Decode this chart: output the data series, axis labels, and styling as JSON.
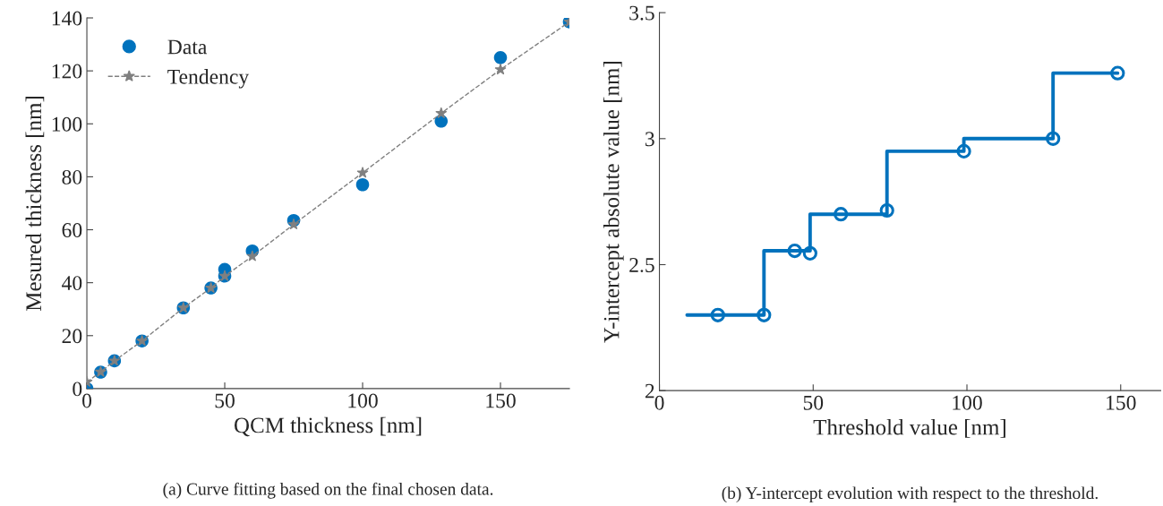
{
  "chart_data": [
    {
      "type": "scatter",
      "xlabel": "QCM thickness [nm]",
      "ylabel": "Mesured thickness [nm]",
      "xlim": [
        0,
        175
      ],
      "ylim": [
        0,
        140
      ],
      "xticks": [
        0,
        50,
        100,
        150
      ],
      "yticks": [
        0,
        20,
        40,
        60,
        80,
        100,
        120,
        140
      ],
      "grid": false,
      "legend": "top left",
      "annotations": [
        "(a) Curve fitting based on the final chosen data."
      ],
      "series": [
        {
          "name": "Data",
          "type": "scatter",
          "color": "#0072bd",
          "marker": "circle",
          "x": [
            0,
            5,
            10,
            20,
            35,
            45,
            50,
            50,
            60,
            75,
            100,
            128.5,
            150,
            175
          ],
          "values": [
            0,
            6.2,
            10.5,
            18,
            30.5,
            38,
            45,
            42.5,
            52,
            63.5,
            77,
            101,
            125,
            138.5
          ]
        },
        {
          "name": "Tendency",
          "type": "line",
          "color": "#808080",
          "marker": "star",
          "line_style": "dashed",
          "x": [
            0,
            5,
            10,
            20,
            35,
            45,
            50,
            60,
            75,
            100,
            128.5,
            150,
            175
          ],
          "values": [
            2.5,
            6.3,
            10.5,
            18,
            30.5,
            38,
            42.5,
            50,
            62,
            81.5,
            104,
            120.5,
            138.5
          ]
        }
      ]
    },
    {
      "type": "step",
      "xlabel": "Threshold value [nm]",
      "ylabel": "Y-intercept absolute value [nm]",
      "xlim": [
        0,
        163
      ],
      "ylim": [
        2,
        3.5
      ],
      "xticks": [
        0,
        50,
        100,
        150
      ],
      "yticks": [
        2,
        2.5,
        3,
        3.5
      ],
      "grid": false,
      "legend": false,
      "annotations": [
        "(b) Y-intercept evolution with respect to the threshold."
      ],
      "series": [
        {
          "type": "step",
          "color": "#0072bd",
          "marker": "none",
          "line_style": "solid",
          "x": [
            9,
            34,
            49,
            74,
            99,
            128,
            149
          ],
          "values": [
            2.3,
            2.555,
            2.7,
            2.95,
            3.0,
            3.26,
            3.26
          ]
        },
        {
          "type": "scatter",
          "color": "#0072bd",
          "marker": "circle",
          "x": [
            19,
            34,
            44,
            49,
            59,
            74,
            99,
            128,
            149
          ],
          "values": [
            2.3,
            2.3,
            2.555,
            2.545,
            2.7,
            2.715,
            2.95,
            3.0,
            3.26
          ]
        }
      ]
    }
  ]
}
